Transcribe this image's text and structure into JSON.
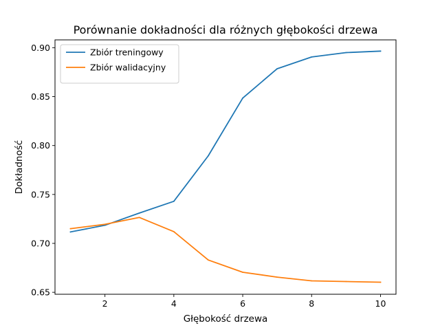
{
  "chart_data": {
    "type": "line",
    "title": "Porównanie dokładności dla różnych głębokości drzewa",
    "xlabel": "Głębokość drzewa",
    "ylabel": "Dokładność",
    "x": [
      1,
      2,
      3,
      4,
      5,
      6,
      7,
      8,
      9,
      10
    ],
    "xlim": [
      0.55,
      10.45
    ],
    "ylim": [
      0.648,
      0.908
    ],
    "xticks": [
      2,
      4,
      6,
      8,
      10
    ],
    "xtick_labels": [
      "2",
      "4",
      "6",
      "8",
      "10"
    ],
    "yticks": [
      0.65,
      0.7,
      0.75,
      0.8,
      0.85,
      0.9
    ],
    "ytick_labels": [
      "0.65",
      "0.70",
      "0.75",
      "0.80",
      "0.85",
      "0.90"
    ],
    "grid": false,
    "legend_position": "upper-left",
    "series": [
      {
        "name": "Zbiór treningowy",
        "color": "#1f77b4",
        "values": [
          0.7117,
          0.7185,
          0.731,
          0.743,
          0.7895,
          0.8485,
          0.8785,
          0.8905,
          0.895,
          0.8965
        ]
      },
      {
        "name": "Zbiór walidacyjny",
        "color": "#ff7f0e",
        "values": [
          0.715,
          0.7195,
          0.7265,
          0.712,
          0.683,
          0.6705,
          0.6655,
          0.6617,
          0.661,
          0.6603
        ]
      }
    ]
  }
}
